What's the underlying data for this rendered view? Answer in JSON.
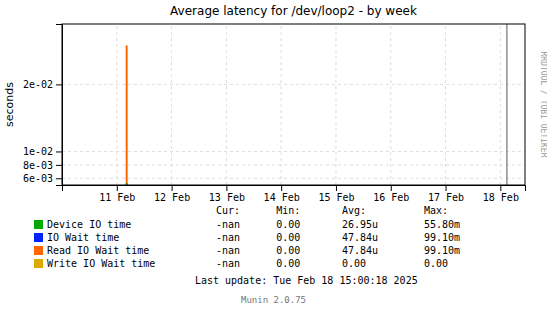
{
  "chart_data": {
    "type": "line",
    "title": "Average latency for /dev/loop2 - by week",
    "ylabel": "seconds",
    "x": [
      11.18,
      11.18
    ],
    "series": [
      {
        "name": "Device IO time",
        "color": "#00aa00",
        "values": [
          0.005,
          0.00525
        ],
        "stats": [
          "-nan",
          "0.00",
          "26.95u",
          "55.80m"
        ]
      },
      {
        "name": "IO Wait time",
        "color": "#0022ff",
        "values": [
          null,
          null
        ],
        "stats": [
          "-nan",
          "0.00",
          "47.84u",
          "99.10m"
        ]
      },
      {
        "name": "Read IO Wait time",
        "color": "#ff6600",
        "values": [
          0.005,
          0.0258
        ],
        "stats": [
          "-nan",
          "0.00",
          "47.84u",
          "99.10m"
        ]
      },
      {
        "name": "Write IO Wait time",
        "color": "#ddaa00",
        "values": [
          null,
          null
        ],
        "stats": [
          "-nan",
          "0.00",
          "0.00",
          "0.00"
        ]
      }
    ],
    "xlim": [
      10.0,
      18.45
    ],
    "xticks": [
      {
        "value": 11,
        "label": "11 Feb"
      },
      {
        "value": 12,
        "label": "12 Feb"
      },
      {
        "value": 13,
        "label": "13 Feb"
      },
      {
        "value": 14,
        "label": "14 Feb"
      },
      {
        "value": 15,
        "label": "15 Feb"
      },
      {
        "value": 16,
        "label": "16 Feb"
      },
      {
        "value": 17,
        "label": "17 Feb"
      },
      {
        "value": 18,
        "label": "18 Feb"
      }
    ],
    "ylim": [
      0.005,
      0.029
    ],
    "yticks": [
      {
        "value": 0.006,
        "label": "6e-03"
      },
      {
        "value": 0.008,
        "label": "8e-03"
      },
      {
        "value": 0.01,
        "label": "1e-02"
      },
      {
        "value": 0.02,
        "label": "2e-02"
      }
    ],
    "vlines": [
      18.12
    ],
    "grid": true,
    "legend": "bottom",
    "table_headers": [
      "Cur:",
      "Min:",
      "Avg:",
      "Max:"
    ],
    "annotations": [
      "Last update: Tue Feb 18 15:00:18 2025",
      "Munin 2.0.75",
      "RRDTOOL / TOBI OETIKER"
    ]
  }
}
